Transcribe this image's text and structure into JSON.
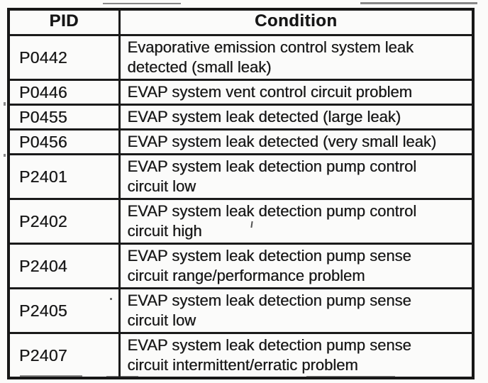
{
  "page": {
    "paper_color": "#fbfbfa",
    "ink_color": "#161616"
  },
  "table": {
    "headers": {
      "pid": "PID",
      "condition": "Condition"
    },
    "rows": [
      {
        "pid": "P0442",
        "condition": "Evaporative emission control system leak detected (small leak)",
        "lines": [
          "Evaporative emission control system leak",
          "detected (small leak)"
        ]
      },
      {
        "pid": "P0446",
        "condition": "EVAP system vent control circuit problem",
        "lines": [
          "EVAP system vent control circuit problem"
        ]
      },
      {
        "pid": "P0455",
        "condition": "EVAP system leak detected (large leak)",
        "lines": [
          "EVAP system leak detected (large leak)"
        ]
      },
      {
        "pid": "P0456",
        "condition": "EVAP system leak detected (very small leak)",
        "lines": [
          "EVAP system leak detected (very small leak)"
        ]
      },
      {
        "pid": "P2401",
        "condition": "EVAP system leak detection pump control circuit low",
        "lines": [
          "EVAP system leak detection pump control",
          "circuit low"
        ]
      },
      {
        "pid": "P2402",
        "condition": "EVAP system leak detection pump control circuit high",
        "lines": [
          "EVAP system leak detection pump control",
          "circuit high"
        ]
      },
      {
        "pid": "P2404",
        "condition": "EVAP system leak detection pump sense circuit range/performance problem",
        "lines": [
          "EVAP system leak detection pump sense",
          "circuit range/performance problem"
        ]
      },
      {
        "pid": "P2405",
        "condition": "EVAP system leak detection pump sense circuit low",
        "lines": [
          "EVAP system leak detection pump sense",
          "circuit low"
        ]
      },
      {
        "pid": "P2407",
        "condition": "EVAP system leak detection pump sense circuit intermittent/erratic problem",
        "lines": [
          "EVAP system leak detection pump sense",
          "circuit intermittent/erratic problem"
        ]
      }
    ]
  }
}
